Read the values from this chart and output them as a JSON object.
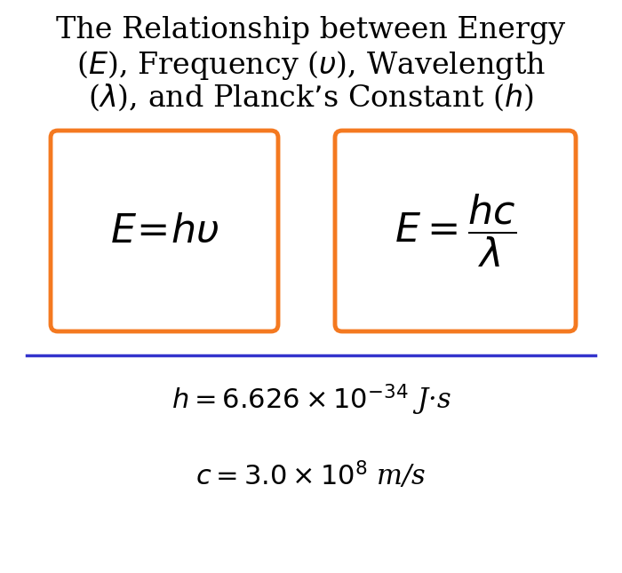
{
  "title_line1": "The Relationship between Energy",
  "title_line2": "($E$), Frequency ($\\upsilon$), Wavelength",
  "title_line3": "($\\lambda$), and Planck’s Constant ($h$)",
  "formula1": "$E\\!=\\!h\\upsilon$",
  "formula2_eq": "$E = \\dfrac{hc}{\\lambda}$",
  "constant_h": "$h = 6.626 \\times 10^{-34}$ J·s",
  "constant_c": "$c = 3.0 \\times 10^{8}$ m/s",
  "box_color": "#F47920",
  "line_color": "#3333CC",
  "text_color": "#000000",
  "bg_color": "#FFFFFF",
  "title_fontsize": 24,
  "formula_fontsize": 28,
  "constant_fontsize": 22
}
